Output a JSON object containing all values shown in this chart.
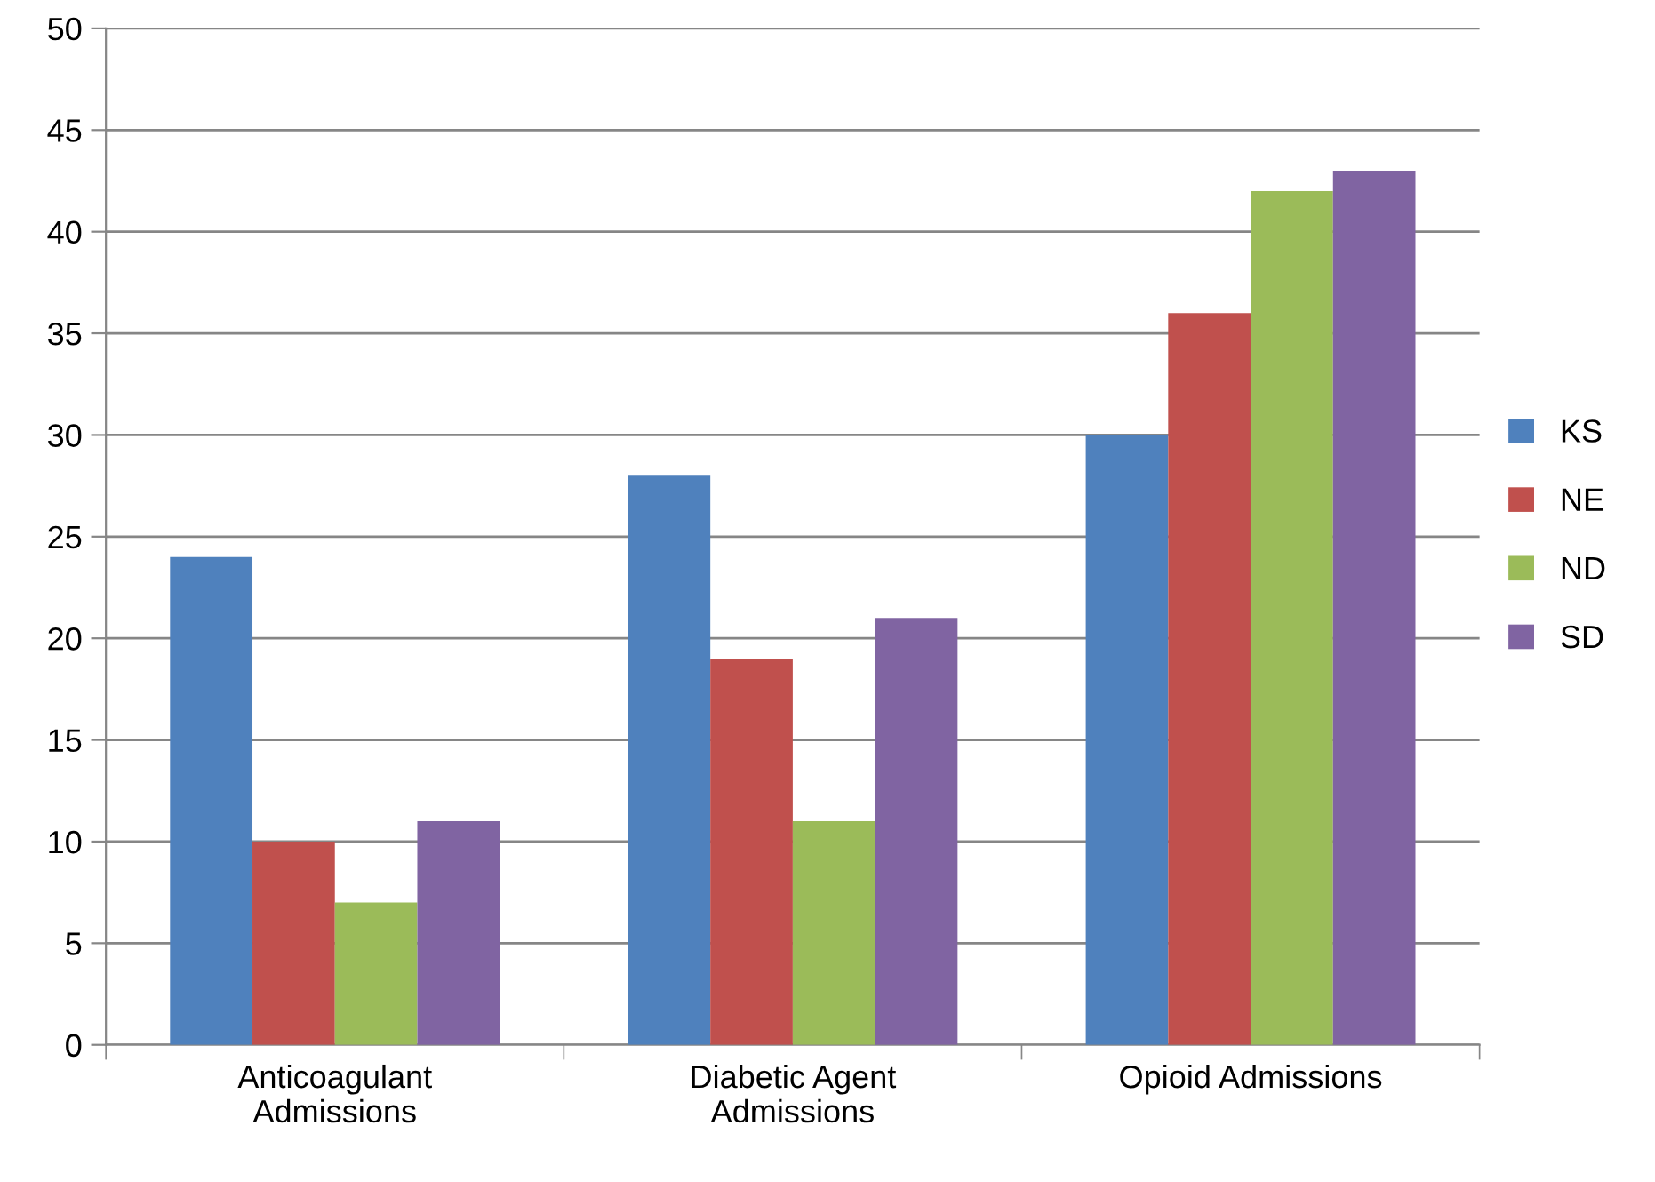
{
  "chart_data": {
    "type": "bar",
    "categories": [
      "Anticoagulant\nAdmissions",
      "Diabetic Agent\nAdmissions",
      "Opioid Admissions"
    ],
    "series": [
      {
        "name": "KS",
        "color": "#4f81bd",
        "values": [
          24,
          28,
          30
        ]
      },
      {
        "name": "NE",
        "color": "#c0504d",
        "values": [
          10,
          19,
          36
        ]
      },
      {
        "name": "ND",
        "color": "#9bbb59",
        "values": [
          7,
          11,
          42
        ]
      },
      {
        "name": "SD",
        "color": "#8064a2",
        "values": [
          11,
          21,
          43
        ]
      }
    ],
    "ylim": [
      0,
      50
    ],
    "yticks": [
      0,
      5,
      10,
      15,
      20,
      25,
      30,
      35,
      40,
      45,
      50
    ],
    "grid": "y",
    "legend": "right"
  }
}
